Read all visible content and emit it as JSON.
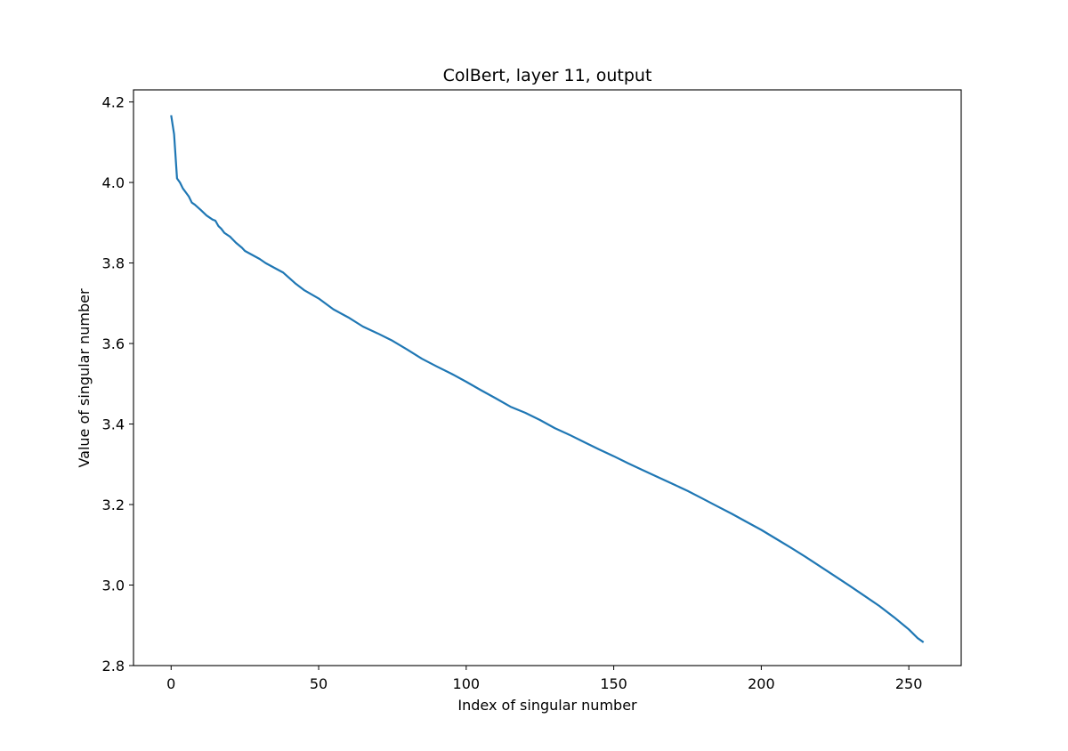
{
  "chart_data": {
    "type": "line",
    "title": "ColBert, layer 11, output",
    "xlabel": "Index of singular number",
    "ylabel": "Value of singular number",
    "xlim": [
      -12.75,
      267.75
    ],
    "ylim": [
      2.8,
      4.23
    ],
    "xticks": [
      0,
      50,
      100,
      150,
      200,
      250
    ],
    "xtick_labels": [
      "0",
      "50",
      "100",
      "150",
      "200",
      "250"
    ],
    "yticks": [
      2.8,
      3.0,
      3.2,
      3.4,
      3.6,
      3.8,
      4.0,
      4.2
    ],
    "ytick_labels": [
      "2.8",
      "3.0",
      "3.2",
      "3.4",
      "3.6",
      "3.8",
      "4.0",
      "4.2"
    ],
    "grid": false,
    "line_color": "#1f77b4",
    "series": [
      {
        "x": [
          0,
          1,
          2,
          3,
          4,
          5,
          6,
          7,
          8,
          10,
          12,
          14,
          15,
          16,
          17,
          18,
          19,
          20,
          22,
          24,
          25,
          27,
          30,
          32,
          35,
          38,
          40,
          42,
          45,
          50,
          55,
          60,
          65,
          70,
          75,
          80,
          85,
          90,
          95,
          100,
          105,
          110,
          115,
          120,
          125,
          130,
          135,
          140,
          145,
          150,
          155,
          160,
          165,
          170,
          175,
          180,
          185,
          190,
          195,
          200,
          205,
          210,
          215,
          220,
          225,
          230,
          235,
          240,
          245,
          250,
          253,
          255
        ],
        "y": [
          4.167,
          4.12,
          4.01,
          4.0,
          3.985,
          3.975,
          3.965,
          3.95,
          3.945,
          3.932,
          3.918,
          3.908,
          3.905,
          3.892,
          3.885,
          3.875,
          3.87,
          3.865,
          3.85,
          3.838,
          3.83,
          3.822,
          3.81,
          3.8,
          3.788,
          3.776,
          3.763,
          3.75,
          3.733,
          3.712,
          3.685,
          3.665,
          3.642,
          3.625,
          3.607,
          3.585,
          3.562,
          3.543,
          3.525,
          3.505,
          3.484,
          3.464,
          3.443,
          3.428,
          3.41,
          3.39,
          3.373,
          3.355,
          3.337,
          3.32,
          3.302,
          3.285,
          3.268,
          3.251,
          3.234,
          3.215,
          3.196,
          3.177,
          3.157,
          3.137,
          3.115,
          3.093,
          3.07,
          3.046,
          3.022,
          2.998,
          2.973,
          2.948,
          2.92,
          2.89,
          2.868,
          2.858
        ]
      }
    ]
  }
}
